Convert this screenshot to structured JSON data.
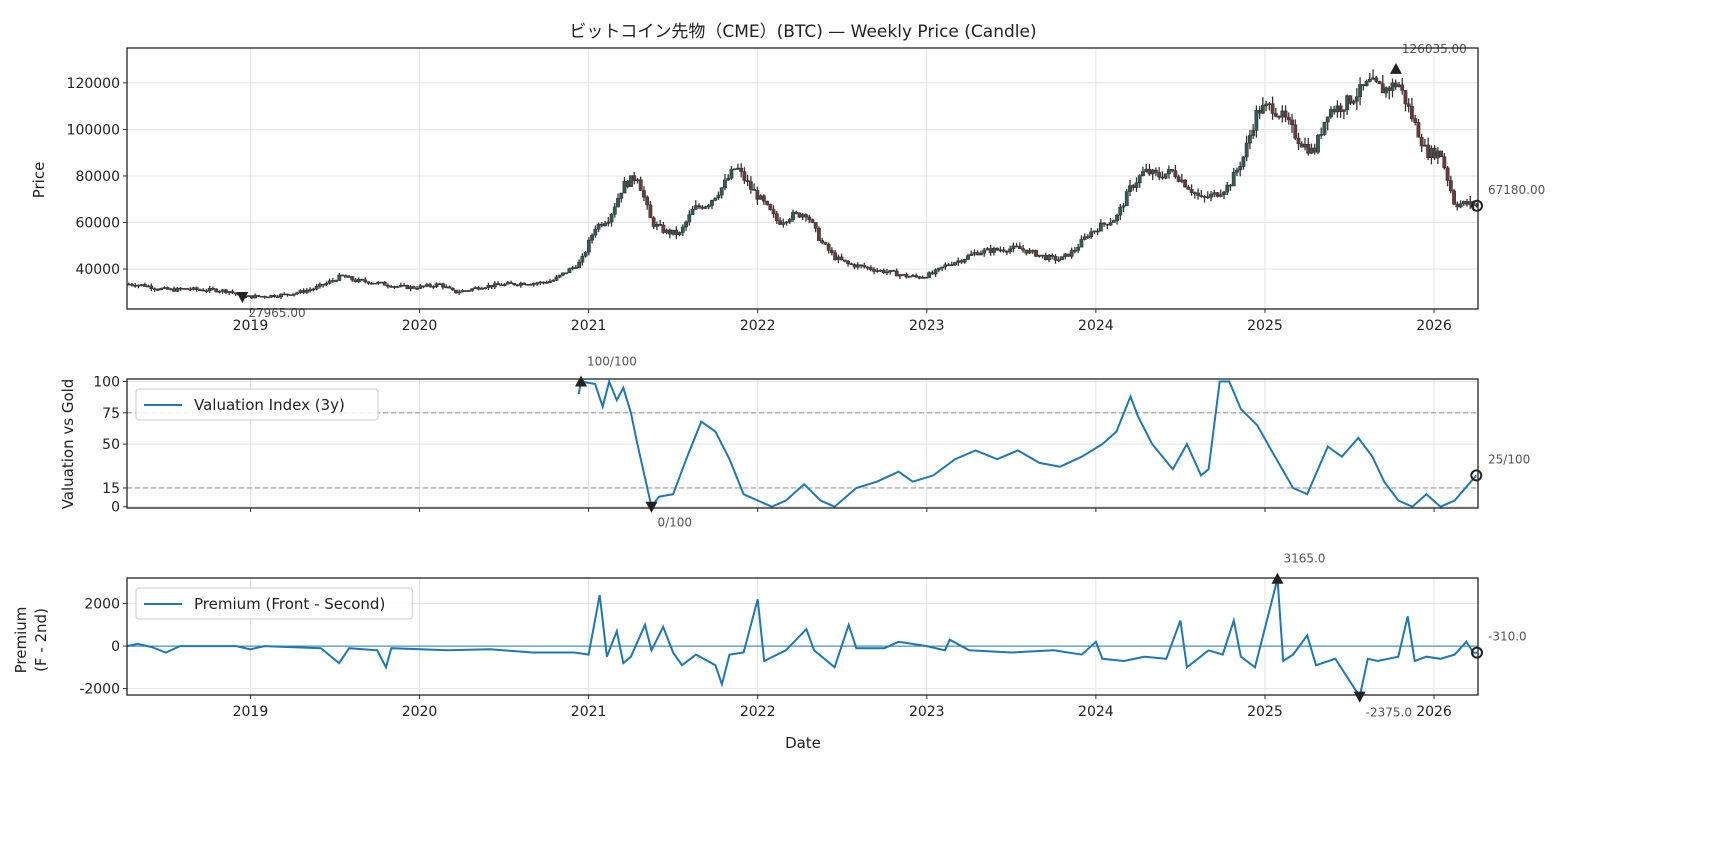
{
  "title": "ビットコイン先物（CME）(BTC) — Weekly Price (Candle)",
  "colors": {
    "line": "#1f77b4",
    "candle_up": "#2f5d57",
    "candle_down": "#6e3b3b",
    "wick": "#333333",
    "ref_line": "#999999"
  },
  "chart_data": [
    {
      "type": "candlestick",
      "ylabel": "Price",
      "ylim": [
        22800,
        135000
      ],
      "xlim": [
        "2018-04-08",
        "2026-04-05"
      ],
      "yticks": [
        "40000",
        "60000",
        "80000",
        "100000",
        "120000"
      ],
      "xticks": [
        "2019",
        "2020",
        "2021",
        "2022",
        "2023",
        "2024",
        "2025",
        "2026"
      ],
      "grid": true,
      "annotations": {
        "min": "27965.00",
        "max": "126035.00",
        "last": "67180.00"
      },
      "annotation_points": {
        "min": [
          "2018-12-14",
          27965
        ],
        "max": [
          "2025-10-10",
          126035
        ],
        "last": [
          "2026-04-03",
          67180
        ]
      },
      "closes": [
        [
          "2018-04",
          33500
        ],
        [
          "2018-05",
          33000
        ],
        [
          "2018-06",
          31500
        ],
        [
          "2018-07",
          31000
        ],
        [
          "2018-08",
          31500
        ],
        [
          "2018-09",
          31000
        ],
        [
          "2018-10",
          31000
        ],
        [
          "2018-11",
          30500
        ],
        [
          "2018-12",
          28000
        ],
        [
          "2019-01",
          28200
        ],
        [
          "2019-02",
          28500
        ],
        [
          "2019-03",
          29000
        ],
        [
          "2019-04",
          30000
        ],
        [
          "2019-05",
          31500
        ],
        [
          "2019-06",
          34000
        ],
        [
          "2019-07",
          37000
        ],
        [
          "2019-08",
          35000
        ],
        [
          "2019-09",
          34500
        ],
        [
          "2019-10",
          33500
        ],
        [
          "2019-11",
          32500
        ],
        [
          "2019-12",
          32000
        ],
        [
          "2020-01",
          32500
        ],
        [
          "2020-02",
          33500
        ],
        [
          "2020-03",
          30000
        ],
        [
          "2020-04",
          31000
        ],
        [
          "2020-05",
          32500
        ],
        [
          "2020-06",
          33000
        ],
        [
          "2020-07",
          33500
        ],
        [
          "2020-08",
          34000
        ],
        [
          "2020-09",
          34000
        ],
        [
          "2020-10",
          35000
        ],
        [
          "2020-11",
          39000
        ],
        [
          "2020-12",
          43000
        ],
        [
          "2021-01",
          58000
        ],
        [
          "2021-02",
          62000
        ],
        [
          "2021-03",
          76000
        ],
        [
          "2021-04",
          80000
        ],
        [
          "2021-05",
          60000
        ],
        [
          "2021-06",
          56000
        ],
        [
          "2021-07",
          55000
        ],
        [
          "2021-08",
          66000
        ],
        [
          "2021-09",
          68000
        ],
        [
          "2021-10",
          75000
        ],
        [
          "2021-11",
          84000
        ],
        [
          "2021-12",
          75000
        ],
        [
          "2022-01",
          68000
        ],
        [
          "2022-02",
          60000
        ],
        [
          "2022-03",
          63000
        ],
        [
          "2022-04",
          64000
        ],
        [
          "2022-05",
          52000
        ],
        [
          "2022-06",
          45000
        ],
        [
          "2022-07",
          42000
        ],
        [
          "2022-08",
          41000
        ],
        [
          "2022-09",
          39500
        ],
        [
          "2022-10",
          38500
        ],
        [
          "2022-11",
          37000
        ],
        [
          "2022-12",
          36500
        ],
        [
          "2023-01",
          38000
        ],
        [
          "2023-02",
          42000
        ],
        [
          "2023-03",
          44000
        ],
        [
          "2023-04",
          47000
        ],
        [
          "2023-05",
          48000
        ],
        [
          "2023-06",
          48500
        ],
        [
          "2023-07",
          49000
        ],
        [
          "2023-08",
          47000
        ],
        [
          "2023-09",
          45000
        ],
        [
          "2023-10",
          44000
        ],
        [
          "2023-11",
          48000
        ],
        [
          "2023-12",
          55000
        ],
        [
          "2024-01",
          59000
        ],
        [
          "2024-02",
          62000
        ],
        [
          "2024-03",
          75000
        ],
        [
          "2024-04",
          82000
        ],
        [
          "2024-05",
          80000
        ],
        [
          "2024-06",
          82000
        ],
        [
          "2024-07",
          76000
        ],
        [
          "2024-08",
          70000
        ],
        [
          "2024-09",
          72000
        ],
        [
          "2024-10",
          76000
        ],
        [
          "2024-11",
          88000
        ],
        [
          "2024-12",
          108000
        ],
        [
          "2025-01",
          110000
        ],
        [
          "2025-02",
          104000
        ],
        [
          "2025-03",
          95000
        ],
        [
          "2025-04",
          90000
        ],
        [
          "2025-05",
          108000
        ],
        [
          "2025-06",
          110000
        ],
        [
          "2025-07",
          115000
        ],
        [
          "2025-08",
          120000
        ],
        [
          "2025-09",
          117000
        ],
        [
          "2025-10",
          120000
        ],
        [
          "2025-11",
          105000
        ],
        [
          "2025-12",
          90000
        ],
        [
          "2026-01",
          90000
        ],
        [
          "2026-02",
          68000
        ],
        [
          "2026-03",
          68000
        ],
        [
          "2026-04",
          67180
        ]
      ]
    },
    {
      "type": "line",
      "ylabel": "Valuation vs Gold",
      "ylim": [
        -1,
        102
      ],
      "yticks": [
        "0",
        "15",
        "50",
        "75",
        "100"
      ],
      "reference_lines": [
        75,
        15
      ],
      "legend": "top-left",
      "series": [
        {
          "name": "Valuation Index (3y)",
          "points": [
            [
              "2020-12-10",
              90
            ],
            [
              "2020-12-15",
              100
            ],
            [
              "2021-01-15",
              98
            ],
            [
              "2021-02-01",
              80
            ],
            [
              "2021-02-15",
              100
            ],
            [
              "2021-03-01",
              85
            ],
            [
              "2021-03-15",
              95
            ],
            [
              "2021-04-01",
              75
            ],
            [
              "2021-04-15",
              50
            ],
            [
              "2021-05-15",
              0
            ],
            [
              "2021-06-01",
              8
            ],
            [
              "2021-07-01",
              10
            ],
            [
              "2021-08-01",
              40
            ],
            [
              "2021-09-01",
              68
            ],
            [
              "2021-10-01",
              60
            ],
            [
              "2021-11-01",
              38
            ],
            [
              "2021-12-01",
              10
            ],
            [
              "2022-01-01",
              5
            ],
            [
              "2022-02-01",
              0
            ],
            [
              "2022-03-01",
              5
            ],
            [
              "2022-04-10",
              18
            ],
            [
              "2022-05-15",
              5
            ],
            [
              "2022-06-15",
              0
            ],
            [
              "2022-08-01",
              15
            ],
            [
              "2022-09-15",
              20
            ],
            [
              "2022-11-01",
              28
            ],
            [
              "2022-12-01",
              20
            ],
            [
              "2023-01-15",
              25
            ],
            [
              "2023-03-01",
              38
            ],
            [
              "2023-04-15",
              45
            ],
            [
              "2023-06-01",
              38
            ],
            [
              "2023-07-15",
              45
            ],
            [
              "2023-09-01",
              35
            ],
            [
              "2023-10-15",
              32
            ],
            [
              "2023-12-01",
              40
            ],
            [
              "2024-01-15",
              50
            ],
            [
              "2024-02-15",
              60
            ],
            [
              "2024-03-15",
              88
            ],
            [
              "2024-04-01",
              72
            ],
            [
              "2024-05-01",
              50
            ],
            [
              "2024-06-15",
              30
            ],
            [
              "2024-07-15",
              50
            ],
            [
              "2024-08-15",
              25
            ],
            [
              "2024-09-01",
              30
            ],
            [
              "2024-09-25",
              100
            ],
            [
              "2024-10-15",
              100
            ],
            [
              "2024-11-10",
              78
            ],
            [
              "2024-12-15",
              65
            ],
            [
              "2025-01-15",
              45
            ],
            [
              "2025-03-01",
              15
            ],
            [
              "2025-04-01",
              10
            ],
            [
              "2025-05-15",
              48
            ],
            [
              "2025-06-15",
              40
            ],
            [
              "2025-07-20",
              55
            ],
            [
              "2025-08-20",
              40
            ],
            [
              "2025-09-15",
              20
            ],
            [
              "2025-10-15",
              5
            ],
            [
              "2025-11-15",
              0
            ],
            [
              "2025-12-15",
              10
            ],
            [
              "2026-01-15",
              0
            ],
            [
              "2026-02-15",
              5
            ],
            [
              "2026-04-01",
              25
            ]
          ]
        }
      ],
      "annotations": {
        "max": "100/100",
        "min": "0/100",
        "last": "25/100"
      },
      "annotation_points": {
        "max": [
          "2020-12-15",
          100
        ],
        "min": [
          "2021-05-15",
          0
        ],
        "last": [
          "2026-04-01",
          25
        ]
      }
    },
    {
      "type": "line",
      "ylabel": "Premium\n(F - 2nd)",
      "xlabel": "Date",
      "ylim": [
        -2300,
        3200
      ],
      "yticks": [
        "-2000",
        "0",
        "2000"
      ],
      "xticks": [
        "2019",
        "2020",
        "2021",
        "2022",
        "2023",
        "2024",
        "2025",
        "2026"
      ],
      "reference_lines": [
        0
      ],
      "legend": "top-left",
      "series": [
        {
          "name": "Premium (Front - Second)",
          "points": [
            [
              "2018-04-08",
              0
            ],
            [
              "2018-05-01",
              100
            ],
            [
              "2018-06-01",
              -50
            ],
            [
              "2018-07-01",
              -300
            ],
            [
              "2018-08-01",
              0
            ],
            [
              "2018-12-01",
              0
            ],
            [
              "2019-01-01",
              -150
            ],
            [
              "2019-02-01",
              0
            ],
            [
              "2019-06-01",
              -100
            ],
            [
              "2019-07-10",
              -800
            ],
            [
              "2019-08-01",
              -100
            ],
            [
              "2019-10-01",
              -200
            ],
            [
              "2019-10-20",
              -1000
            ],
            [
              "2019-11-01",
              -100
            ],
            [
              "2020-03-01",
              -200
            ],
            [
              "2020-06-01",
              -150
            ],
            [
              "2020-09-01",
              -300
            ],
            [
              "2020-12-01",
              -300
            ],
            [
              "2021-01-01",
              -400
            ],
            [
              "2021-01-25",
              2400
            ],
            [
              "2021-02-10",
              -500
            ],
            [
              "2021-03-01",
              700
            ],
            [
              "2021-03-15",
              -800
            ],
            [
              "2021-04-01",
              -500
            ],
            [
              "2021-05-01",
              1000
            ],
            [
              "2021-05-15",
              -200
            ],
            [
              "2021-06-10",
              900
            ],
            [
              "2021-07-01",
              -300
            ],
            [
              "2021-07-20",
              -900
            ],
            [
              "2021-08-20",
              -400
            ],
            [
              "2021-10-01",
              -900
            ],
            [
              "2021-10-15",
              -1800
            ],
            [
              "2021-11-01",
              -400
            ],
            [
              "2021-12-01",
              -300
            ],
            [
              "2022-01-01",
              2200
            ],
            [
              "2022-01-15",
              -700
            ],
            [
              "2022-03-01",
              -200
            ],
            [
              "2022-04-15",
              800
            ],
            [
              "2022-05-01",
              -200
            ],
            [
              "2022-06-15",
              -1000
            ],
            [
              "2022-07-15",
              1000
            ],
            [
              "2022-08-01",
              -100
            ],
            [
              "2022-10-01",
              -100
            ],
            [
              "2022-11-01",
              200
            ],
            [
              "2023-01-01",
              0
            ],
            [
              "2023-02-10",
              -200
            ],
            [
              "2023-02-20",
              300
            ],
            [
              "2023-04-01",
              -200
            ],
            [
              "2023-07-01",
              -300
            ],
            [
              "2023-10-01",
              -200
            ],
            [
              "2023-12-01",
              -400
            ],
            [
              "2024-01-01",
              200
            ],
            [
              "2024-01-15",
              -600
            ],
            [
              "2024-03-01",
              -700
            ],
            [
              "2024-04-15",
              -500
            ],
            [
              "2024-06-01",
              -600
            ],
            [
              "2024-07-01",
              1200
            ],
            [
              "2024-07-15",
              -1000
            ],
            [
              "2024-09-01",
              -200
            ],
            [
              "2024-10-01",
              -400
            ],
            [
              "2024-10-25",
              1200
            ],
            [
              "2024-11-10",
              -500
            ],
            [
              "2024-12-10",
              -1000
            ],
            [
              "2025-01-28",
              3165
            ],
            [
              "2025-02-10",
              -700
            ],
            [
              "2025-03-01",
              -400
            ],
            [
              "2025-04-01",
              500
            ],
            [
              "2025-04-20",
              -900
            ],
            [
              "2025-06-01",
              -600
            ],
            [
              "2025-07-23",
              -2375
            ],
            [
              "2025-08-10",
              -600
            ],
            [
              "2025-09-01",
              -700
            ],
            [
              "2025-10-15",
              -500
            ],
            [
              "2025-11-05",
              1400
            ],
            [
              "2025-11-20",
              -700
            ],
            [
              "2025-12-15",
              -500
            ],
            [
              "2026-01-15",
              -600
            ],
            [
              "2026-02-15",
              -400
            ],
            [
              "2026-03-10",
              200
            ],
            [
              "2026-03-25",
              -300
            ],
            [
              "2026-04-03",
              -310
            ]
          ]
        }
      ],
      "annotations": {
        "max": "3165.0",
        "min": "-2375.0",
        "last": "-310.0"
      },
      "annotation_points": {
        "max": [
          "2025-01-28",
          3165
        ],
        "min": [
          "2025-07-23",
          -2375
        ],
        "last": [
          "2026-04-03",
          -310
        ]
      }
    }
  ]
}
